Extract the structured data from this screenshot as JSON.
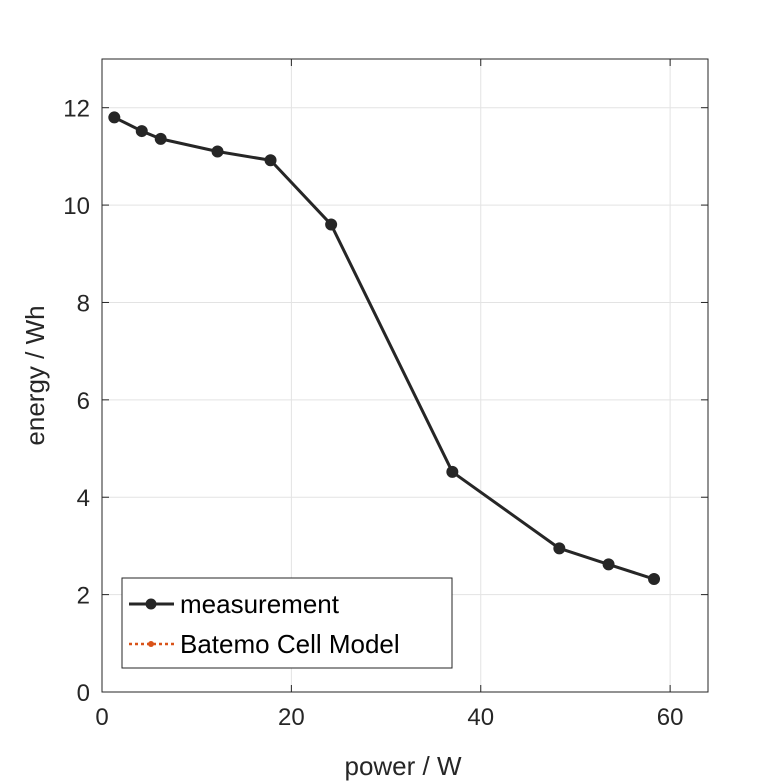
{
  "chart_data": {
    "type": "line",
    "xlabel": "power / W",
    "ylabel": "energy / Wh",
    "xlim": [
      0,
      64
    ],
    "ylim": [
      0,
      13
    ],
    "xticks": [
      0,
      20,
      40,
      60
    ],
    "yticks": [
      0,
      2,
      4,
      6,
      8,
      10,
      12
    ],
    "grid": true,
    "legend_position": "bottom-left",
    "series": [
      {
        "name": "measurement",
        "color": "#262626",
        "line_style": "solid",
        "marker": "circle",
        "x": [
          1.3,
          4.2,
          6.2,
          12.2,
          17.8,
          24.2,
          37.0,
          48.3,
          53.5,
          58.3
        ],
        "y": [
          11.8,
          11.52,
          11.36,
          11.1,
          10.92,
          9.6,
          4.52,
          2.95,
          2.62,
          2.32
        ]
      },
      {
        "name": "Batemo Cell Model",
        "color": "#d95319",
        "line_style": "dotted",
        "marker": "dot",
        "x": [],
        "y": []
      }
    ]
  }
}
